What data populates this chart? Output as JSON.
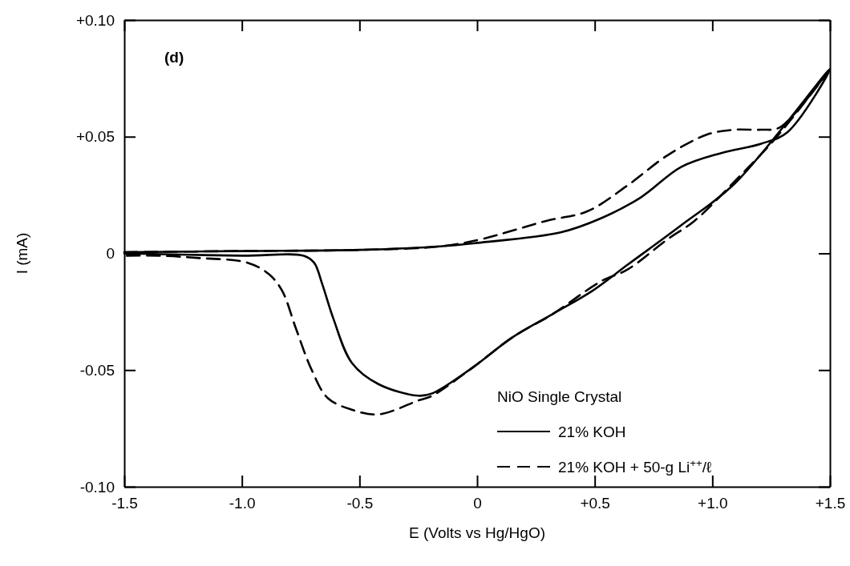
{
  "chart_data": {
    "type": "line",
    "xlabel": "E (Volts vs Hg/HgO)",
    "ylabel": "I (mA)",
    "xlim": [
      -1.5,
      1.5
    ],
    "ylim": [
      -0.1,
      0.1
    ],
    "xticks": [
      {
        "value": -1.5,
        "label": "-1.5"
      },
      {
        "value": -1.0,
        "label": "-1.0"
      },
      {
        "value": -0.5,
        "label": "-0.5"
      },
      0,
      {
        "value": 0.5,
        "label": "+0.5"
      },
      {
        "value": 1.0,
        "label": "+1.0"
      },
      {
        "value": 1.5,
        "label": "+1.5"
      }
    ],
    "yticks": [
      {
        "value": -0.1,
        "label": "-0.10"
      },
      {
        "value": -0.05,
        "label": "-0.05"
      },
      0,
      {
        "value": 0.05,
        "label": "+0.05"
      },
      {
        "value": 0.1,
        "label": "+0.10"
      }
    ],
    "grid": false,
    "legend": "bottom right",
    "legend_title": "NiO Single Crystal",
    "annotations": [
      "(d)"
    ],
    "series": [
      {
        "name": "21% KOH",
        "color": "#000000",
        "line_style": "solid",
        "x": [
          -1.5,
          -1.0,
          -0.5,
          -0.157,
          0.0,
          0.355,
          0.526,
          0.696,
          0.867,
          1.038,
          1.208,
          1.32,
          1.5,
          1.096,
          0.867,
          0.638,
          0.491,
          0.321,
          0.15,
          -0.02,
          -0.191,
          -0.249,
          -0.42,
          -0.532,
          -0.611,
          -0.659,
          -0.693,
          -0.737,
          -1.0,
          -1.5
        ],
        "values": [
          0.0005,
          0.001,
          0.0015,
          0.003,
          0.0045,
          0.009,
          0.015,
          0.024,
          0.037,
          0.043,
          0.047,
          0.052,
          0.079,
          0.03,
          0.012,
          -0.005,
          -0.016,
          -0.026,
          -0.036,
          -0.049,
          -0.06,
          -0.061,
          -0.056,
          -0.047,
          -0.028,
          -0.013,
          -0.004,
          -0.001,
          -0.001,
          0.0
        ]
      },
      {
        "name": "21% KOH + 50-g Li$^{++}$/ℓ",
        "color": "#000000",
        "line_style": "dashed",
        "x": [
          -1.5,
          -1.0,
          -0.5,
          -0.157,
          0.014,
          0.297,
          0.468,
          0.638,
          0.809,
          0.98,
          1.096,
          1.208,
          1.287,
          1.5,
          1.266,
          1.096,
          0.925,
          0.809,
          0.638,
          0.526,
          0.321,
          0.15,
          -0.02,
          -0.191,
          -0.249,
          -0.42,
          -0.532,
          -0.635,
          -0.703,
          -0.771,
          -0.829,
          -0.884,
          -0.976,
          -1.18,
          -1.35,
          -1.5
        ],
        "values": [
          0.0005,
          0.001,
          0.0015,
          0.003,
          0.006,
          0.014,
          0.018,
          0.029,
          0.042,
          0.051,
          0.053,
          0.053,
          0.054,
          0.079,
          0.049,
          0.031,
          0.014,
          0.006,
          -0.007,
          -0.012,
          -0.026,
          -0.036,
          -0.049,
          -0.061,
          -0.063,
          -0.069,
          -0.067,
          -0.062,
          -0.05,
          -0.032,
          -0.016,
          -0.009,
          -0.004,
          -0.002,
          -0.001,
          -0.001
        ]
      }
    ]
  }
}
